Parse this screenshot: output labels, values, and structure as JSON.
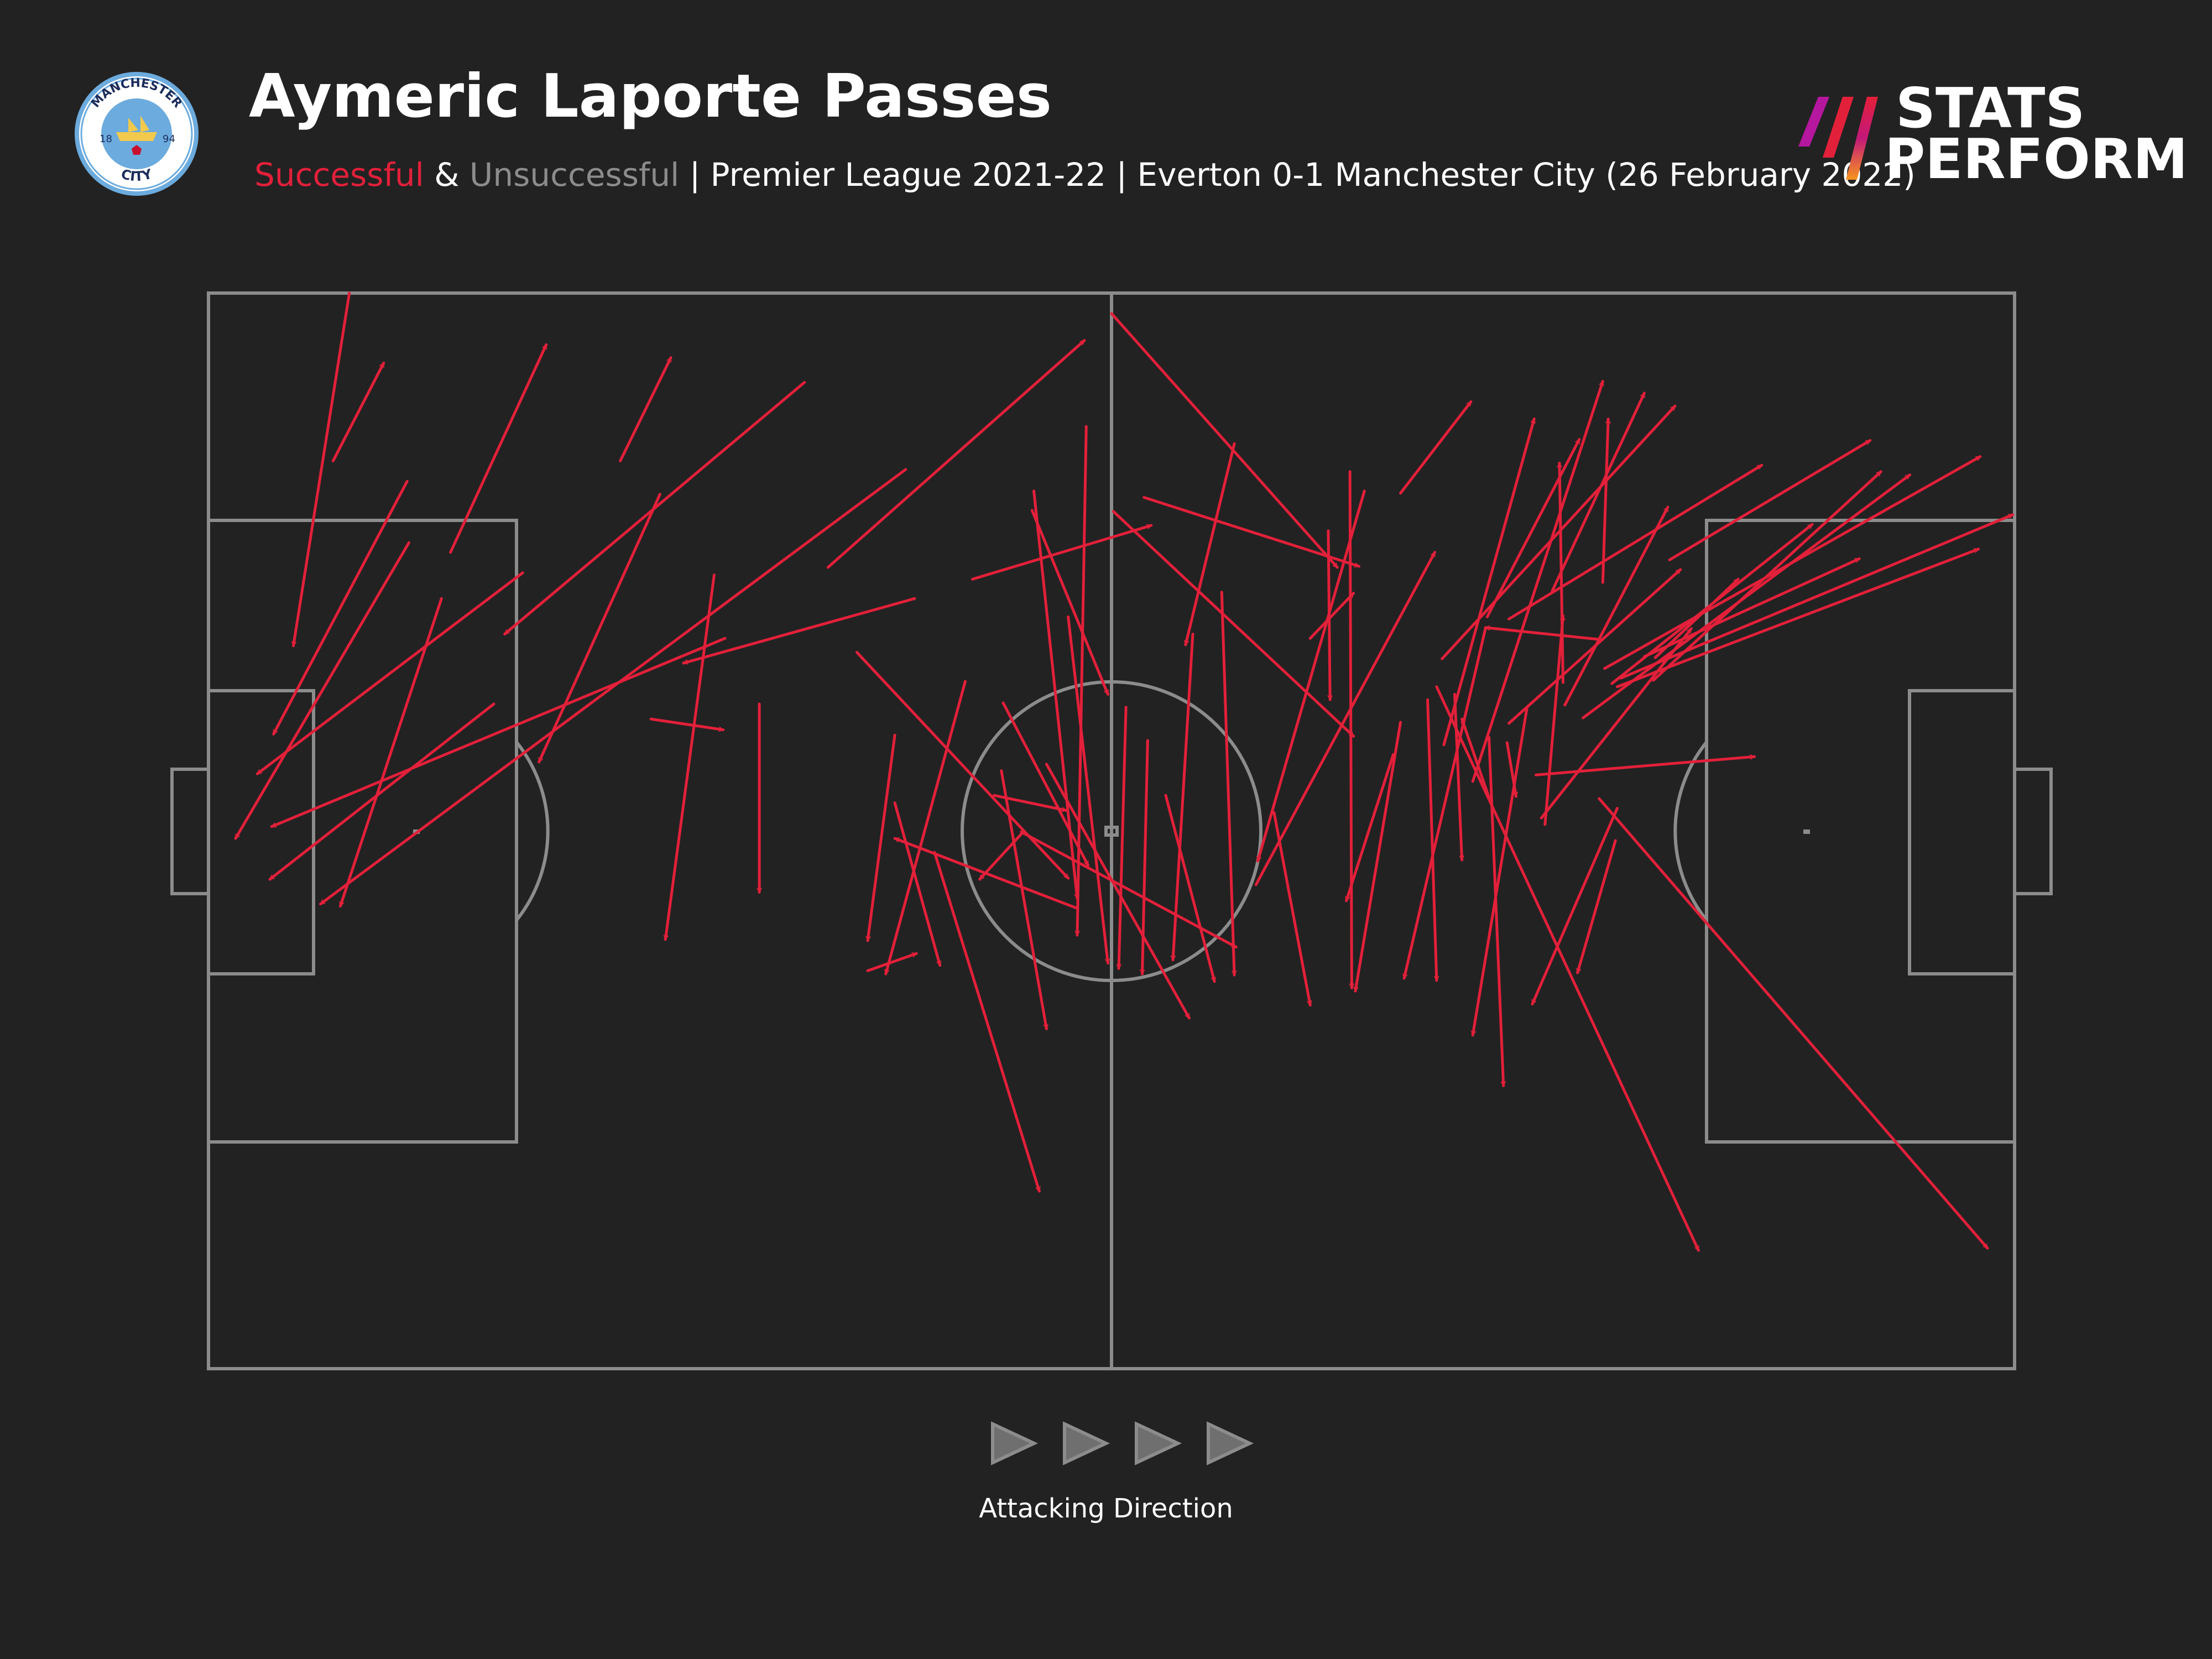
{
  "header": {
    "title": "Aymeric Laporte Passes",
    "subtitle": {
      "successful": "Successful",
      "amp": " & ",
      "unsuccessful": "Unsuccessful",
      "rest": " | Premier League 2021-22 | Everton 0-1 Manchester City (26 February 2022)"
    }
  },
  "brand": {
    "line1": "STATS",
    "line2": "PERFORM"
  },
  "badge": {
    "top_text": "MANCHESTER",
    "bottom_text": "CITY",
    "year_left": "18",
    "year_right": "94"
  },
  "footer": {
    "direction_label": "Attacking Direction"
  },
  "colors": {
    "background": "#222222",
    "successful": "#e3203a",
    "unsuccessful": "#8c8c8c",
    "pitch_lines": "#8c8c8c",
    "badge_blue": "#6cabdd"
  },
  "passes_note_units": "pitch coordinates 0-100 (x = attacking direction, y = bottom to top)",
  "passes": [
    [
      7.8,
      100,
      4.7,
      67.2
    ],
    [
      6.9,
      84.4,
      9.7,
      93.5
    ],
    [
      13.4,
      75.9,
      18.7,
      95.2
    ],
    [
      22.8,
      84.4,
      25.6,
      94
    ],
    [
      33,
      91.7,
      16.4,
      68.3
    ],
    [
      11,
      82.5,
      3.6,
      59
    ],
    [
      11.1,
      76.8,
      1.5,
      49.3
    ],
    [
      17.4,
      74,
      2.7,
      55.3
    ],
    [
      15.8,
      61.8,
      3.4,
      45.5
    ],
    [
      12.9,
      71.6,
      7.3,
      43
    ],
    [
      25,
      81.3,
      18.3,
      56.4
    ],
    [
      28.6,
      67.9,
      3.5,
      50.4
    ],
    [
      38.6,
      83.6,
      6.2,
      43.2
    ],
    [
      24.5,
      60.4,
      28.5,
      59.4
    ],
    [
      30.5,
      61.8,
      30.5,
      44.3
    ],
    [
      28,
      73.8,
      25.3,
      39.9
    ],
    [
      34.3,
      74.5,
      48.5,
      95.6
    ],
    [
      39.1,
      71.6,
      26.3,
      65.6
    ],
    [
      38,
      52.6,
      40.5,
      37.5
    ],
    [
      45.6,
      79.8,
      49.8,
      62.7
    ],
    [
      50,
      98.1,
      62.5,
      74.5
    ],
    [
      46.4,
      56.2,
      54.3,
      32.6
    ],
    [
      45.7,
      81.6,
      48.1,
      43.7
    ],
    [
      47.6,
      69.9,
      49.8,
      37.7
    ],
    [
      38,
      58.9,
      36.5,
      39.8
    ],
    [
      41.9,
      63.9,
      37.5,
      36.7
    ],
    [
      43.9,
      55.6,
      46.4,
      31.6
    ],
    [
      48.6,
      87.6,
      48.1,
      40.3
    ],
    [
      48.1,
      42.8,
      38,
      49.3
    ],
    [
      45,
      49.7,
      42.7,
      45.5
    ],
    [
      45,
      49.9,
      56.9,
      39.2
    ],
    [
      44,
      61.9,
      48.7,
      46.8
    ],
    [
      42.3,
      73.4,
      52.2,
      78.4
    ],
    [
      36.5,
      37,
      39.2,
      38.6
    ],
    [
      40.2,
      48,
      46,
      16.5
    ],
    [
      43.5,
      53.3,
      47.5,
      51.9
    ],
    [
      35.9,
      66.6,
      47.6,
      45.6
    ],
    [
      50.8,
      61.5,
      50.4,
      37.2
    ],
    [
      50.1,
      79.7,
      63.4,
      58.8
    ],
    [
      56.8,
      86,
      54.1,
      67.3
    ],
    [
      53,
      53.3,
      55.7,
      36
    ],
    [
      52,
      58.4,
      51.7,
      36.7
    ],
    [
      54.5,
      68.3,
      53.4,
      38
    ],
    [
      51.8,
      81,
      63.7,
      74.6
    ],
    [
      56.1,
      72.2,
      56.8,
      36.6
    ],
    [
      64,
      81.6,
      58.1,
      47.2
    ],
    [
      61,
      67.9,
      63.4,
      72.1
    ],
    [
      59,
      51.7,
      61,
      33.8
    ],
    [
      62,
      77.9,
      62.1,
      62.2
    ],
    [
      65.6,
      57.1,
      63,
      43.5
    ],
    [
      63.2,
      83.4,
      63.3,
      35.4
    ],
    [
      58,
      45,
      67.9,
      75.9
    ],
    [
      66,
      60.1,
      63.5,
      35.1
    ],
    [
      67.5,
      62.2,
      68,
      36.1
    ],
    [
      70.7,
      68.8,
      66.2,
      36.3
    ],
    [
      66,
      81.4,
      69.9,
      89.9
    ],
    [
      68.4,
      58,
      73.4,
      88.3
    ],
    [
      70,
      54.6,
      77.2,
      91.8
    ],
    [
      68.3,
      66,
      81.2,
      89.5
    ],
    [
      70.8,
      69.9,
      75.9,
      86.4
    ],
    [
      69,
      62.7,
      69.4,
      47.3
    ],
    [
      73,
      61.4,
      70,
      31
    ],
    [
      74.4,
      72.3,
      79.5,
      90.7
    ],
    [
      70.9,
      58.7,
      71.7,
      26.3
    ],
    [
      72,
      69.7,
      86,
      84
    ],
    [
      77.2,
      73.1,
      77.5,
      88.3
    ],
    [
      75.1,
      61.7,
      80.8,
      80.1
    ],
    [
      79.5,
      66.2,
      91.4,
      75.3
    ],
    [
      76.1,
      60.5,
      94.2,
      83.1
    ],
    [
      73.8,
      51.2,
      82.1,
      68.8
    ],
    [
      77.9,
      49.1,
      75.8,
      36.8
    ],
    [
      77.3,
      65.1,
      98.1,
      84.8
    ],
    [
      80.9,
      75.2,
      92,
      86.3
    ],
    [
      80,
      64,
      92.6,
      83.4
    ],
    [
      80.1,
      66.1,
      84.7,
      73.4
    ],
    [
      78,
      52.1,
      73.3,
      33.9
    ],
    [
      78,
      63.4,
      98,
      76.2
    ],
    [
      75,
      63.8,
      74.8,
      84.2
    ],
    [
      77.7,
      63.7,
      88.8,
      78.5
    ],
    [
      77,
      67.8,
      70.7,
      68.9
    ],
    [
      72,
      60,
      81.5,
      74.3
    ],
    [
      71.9,
      58.2,
      72.4,
      53.2
    ],
    [
      70.9,
      53.1,
      69.4,
      60.4
    ],
    [
      73.5,
      55.2,
      85.6,
      56.9
    ],
    [
      74,
      50.6,
      75,
      70
    ],
    [
      78.2,
      64.2,
      99.9,
      79.4
    ],
    [
      77,
      53,
      98.5,
      11.2
    ],
    [
      68,
      63.4,
      82.5,
      11
    ]
  ]
}
